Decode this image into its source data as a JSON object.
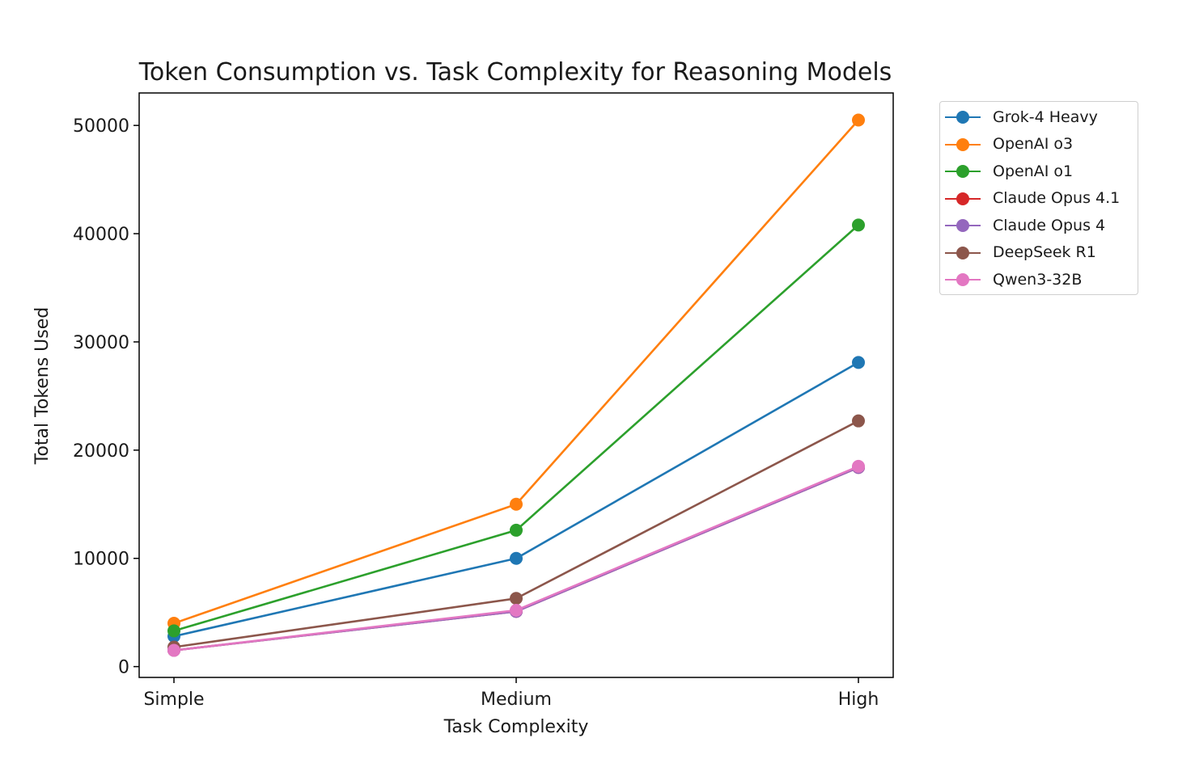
{
  "chart_data": {
    "type": "line",
    "title": "Token Consumption vs. Task Complexity for Reasoning Models",
    "xlabel": "Task Complexity",
    "ylabel": "Total Tokens Used",
    "categories": [
      "Simple",
      "Medium",
      "High"
    ],
    "ylim": [
      -1000,
      53000
    ],
    "yticks": [
      0,
      10000,
      20000,
      30000,
      40000,
      50000
    ],
    "grid": false,
    "legend_position": "outside-top-right",
    "series": [
      {
        "name": "Grok-4 Heavy",
        "color": "#1f77b4",
        "values": [
          2800,
          10000,
          28100
        ]
      },
      {
        "name": "OpenAI o3",
        "color": "#ff7f0e",
        "values": [
          4000,
          15000,
          50500
        ]
      },
      {
        "name": "OpenAI o1",
        "color": "#2ca02c",
        "values": [
          3300,
          12600,
          40800
        ]
      },
      {
        "name": "Claude Opus 4.1",
        "color": "#d62728",
        "values": [
          1500,
          5100,
          18400
        ]
      },
      {
        "name": "Claude Opus 4",
        "color": "#9467bd",
        "values": [
          1500,
          5100,
          18400
        ]
      },
      {
        "name": "DeepSeek R1",
        "color": "#8c564b",
        "values": [
          1800,
          6300,
          22700
        ]
      },
      {
        "name": "Qwen3-32B",
        "color": "#e377c2",
        "values": [
          1500,
          5200,
          18500
        ]
      }
    ]
  }
}
